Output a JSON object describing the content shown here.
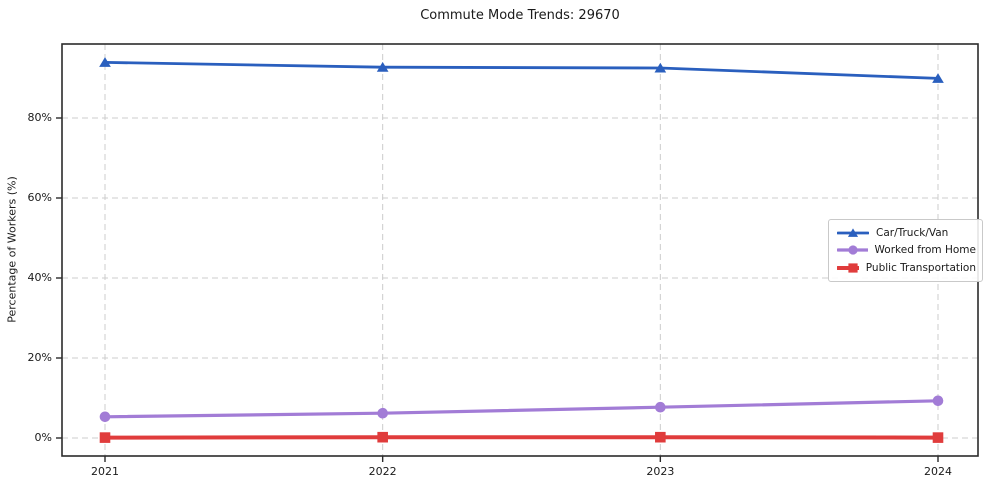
{
  "title": "Commute Mode Trends: 29670",
  "chart_data": {
    "type": "line",
    "title": "Commute Mode Trends: 29670",
    "x": [
      2021,
      2022,
      2023,
      2024
    ],
    "xtick_labels": [
      "2021",
      "2022",
      "2023",
      "2024"
    ],
    "series": [
      {
        "name": "Car/Truck/Van",
        "values": [
          93.9,
          92.7,
          92.5,
          89.9
        ],
        "color": "#2A5FBE",
        "marker": "triangle",
        "line_width": 2.8
      },
      {
        "name": "Worked from Home",
        "values": [
          5.3,
          6.2,
          7.7,
          9.3
        ],
        "color": "#A27CD6",
        "marker": "circle",
        "line_width": 3.2
      },
      {
        "name": "Public Transportation",
        "values": [
          0.1,
          0.2,
          0.2,
          0.1
        ],
        "color": "#E03C3C",
        "marker": "square",
        "line_width": 4.0
      }
    ],
    "xlabel": "",
    "ylabel": "Percentage of Workers (%)",
    "yticks": [
      0,
      20,
      40,
      60,
      80
    ],
    "ytick_labels": [
      "0%",
      "20%",
      "40%",
      "60%",
      "80%"
    ],
    "ylim": [
      -4.5,
      98.5
    ],
    "grid": true,
    "grid_style": "dashed",
    "legend_position": "center right",
    "colors": {
      "grid": "#cccccc",
      "spine": "#2b2b2b",
      "text": "#1a1a1a",
      "background": "#ffffff"
    }
  }
}
